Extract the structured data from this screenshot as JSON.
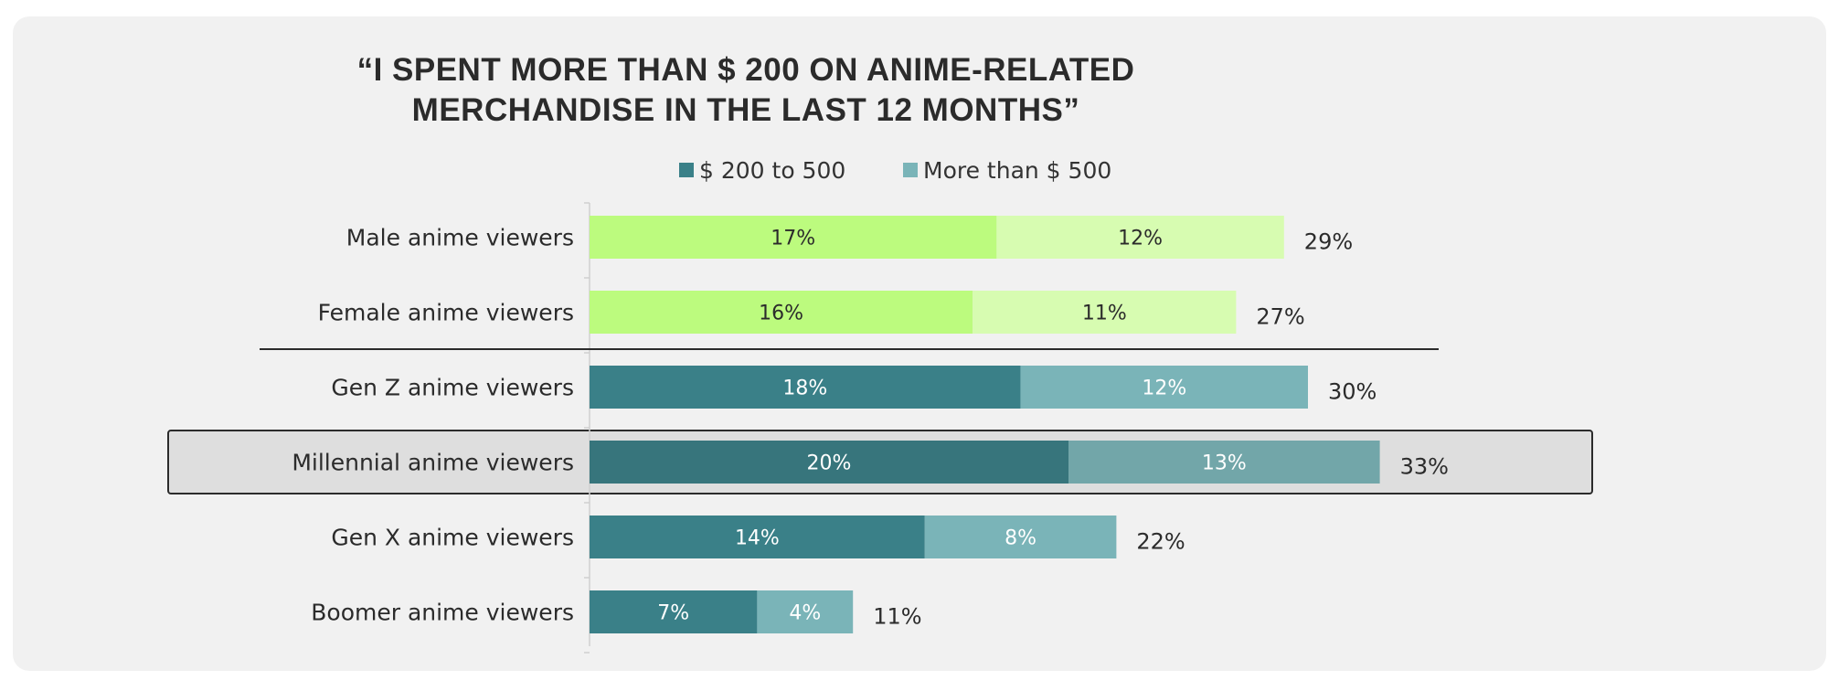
{
  "chart_data": {
    "type": "bar",
    "orientation": "horizontal",
    "stacked": true,
    "title_lines": [
      "“I SPENT MORE THAN $ 200 ON ANIME-RELATED",
      "MERCHANDISE IN THE LAST 12 MONTHS”"
    ],
    "legend": [
      {
        "name": "$ 200 to 500",
        "color": "#3a8088"
      },
      {
        "name": "More than $ 500",
        "color": "#7ab4b8"
      }
    ],
    "categories": [
      "Male anime viewers",
      "Female anime viewers",
      "Gen Z anime viewers",
      "Millennial anime viewers",
      "Gen X anime viewers",
      "Boomer anime viewers"
    ],
    "series": [
      {
        "name": "$ 200 to 500",
        "values": [
          17,
          16,
          18,
          20,
          14,
          7
        ],
        "labels": [
          "17%",
          "16%",
          "18%",
          "20%",
          "14%",
          "7%"
        ]
      },
      {
        "name": "More than $ 500",
        "values": [
          12,
          11,
          12,
          13,
          8,
          4
        ],
        "labels": [
          "12%",
          "11%",
          "12%",
          "13%",
          "8%",
          "4%"
        ]
      }
    ],
    "totals": [
      "29%",
      "27%",
      "30%",
      "33%",
      "22%",
      "11%"
    ],
    "highlighted_category": "Millennial anime viewers",
    "separator_after_category": "Female anime viewers",
    "colors": {
      "gender_dark": "#bcfb7e",
      "gender_light": "#d7fcb1",
      "gen_dark": "#3a8088",
      "gen_light": "#7ab4b8",
      "highlight_dark": "#37757c",
      "highlight_light": "#72a6a9",
      "highlight_bg": "#dedede"
    },
    "xlim": [
      0,
      35
    ],
    "xlabel": "",
    "ylabel": ""
  }
}
